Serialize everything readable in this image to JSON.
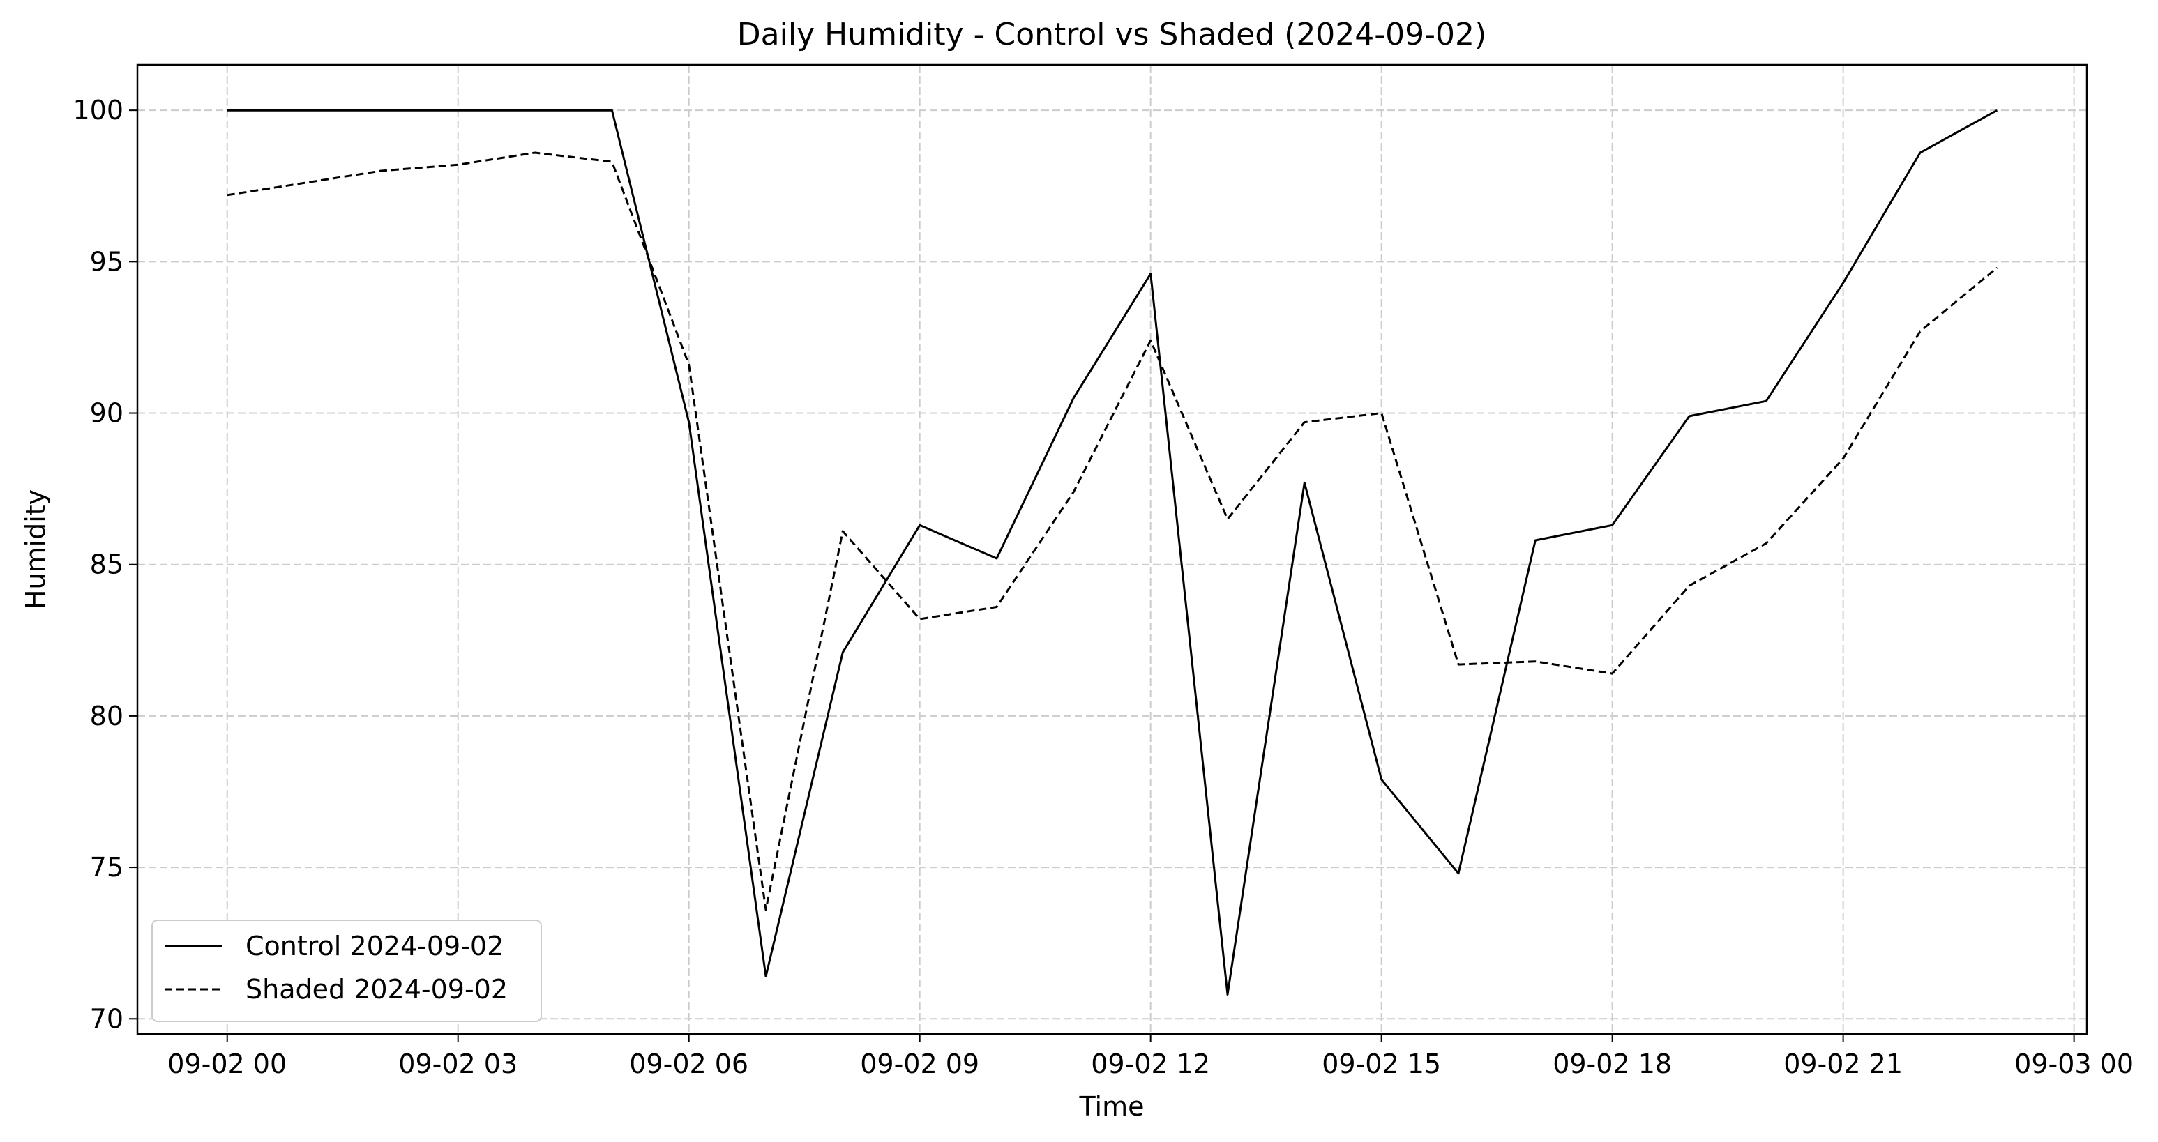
{
  "chart_data": {
    "type": "line",
    "title": "Daily Humidity - Control vs Shaded (2024-09-02)",
    "xlabel": "Time",
    "ylabel": "Humidity",
    "x": [
      "00:00",
      "01:00",
      "02:00",
      "03:00",
      "04:00",
      "05:00",
      "06:00",
      "07:00",
      "08:00",
      "09:00",
      "10:00",
      "11:00",
      "12:00",
      "13:00",
      "14:00",
      "15:00",
      "16:00",
      "17:00",
      "18:00",
      "19:00",
      "20:00",
      "21:00",
      "22:00",
      "23:00"
    ],
    "x_tick_values": [
      "2024-09-02 00:00",
      "2024-09-02 03:00",
      "2024-09-02 06:00",
      "2024-09-02 09:00",
      "2024-09-02 12:00",
      "2024-09-02 15:00",
      "2024-09-02 18:00",
      "2024-09-02 21:00",
      "2024-09-03 00:00"
    ],
    "x_tick_labels": [
      "09-02 00",
      "09-02 03",
      "09-02 06",
      "09-02 09",
      "09-02 12",
      "09-02 15",
      "09-02 18",
      "09-02 21",
      "09-03 00"
    ],
    "xlim": [
      "2024-09-01 22:50",
      "2024-09-03 00:10"
    ],
    "y_ticks": [
      70,
      75,
      80,
      85,
      90,
      95,
      100
    ],
    "y_tick_labels": [
      "70",
      "75",
      "80",
      "85",
      "90",
      "95",
      "100"
    ],
    "ylim": [
      69.5,
      101.5
    ],
    "grid": true,
    "legend_position": "lower-left",
    "series": [
      {
        "name": "Control 2024-09-02",
        "style": "solid",
        "values": [
          100,
          100,
          100,
          100,
          100,
          100,
          89.7,
          71.4,
          82.1,
          86.3,
          85.2,
          90.5,
          94.6,
          70.8,
          87.7,
          77.9,
          74.8,
          85.8,
          86.3,
          89.9,
          90.4,
          94.3,
          98.6,
          100
        ]
      },
      {
        "name": "Shaded 2024-09-02",
        "style": "dashed",
        "values": [
          97.2,
          97.6,
          98.0,
          98.2,
          98.6,
          98.3,
          91.6,
          73.6,
          86.1,
          83.2,
          83.6,
          87.4,
          92.4,
          86.5,
          89.7,
          90.0,
          81.7,
          81.8,
          81.4,
          84.3,
          85.7,
          88.5,
          92.7,
          94.8
        ]
      }
    ],
    "colors": {
      "line": "#000000",
      "grid": "#cccccc",
      "background": "#ffffff"
    }
  }
}
